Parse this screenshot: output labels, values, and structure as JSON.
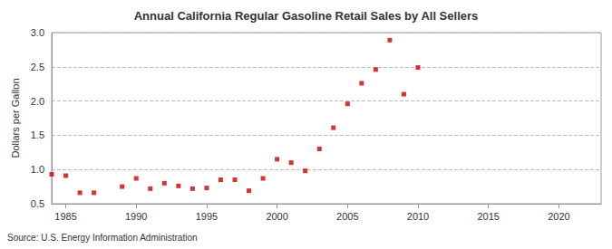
{
  "chart_data": {
    "type": "scatter",
    "title": "Annual California Regular Gasoline Retail Sales by All Sellers",
    "y_label": "Dollars per Gallon",
    "source": "Source: U.S. Energy Information Administration",
    "x": [
      1984,
      1985,
      1986,
      1987,
      1989,
      1990,
      1991,
      1992,
      1993,
      1994,
      1995,
      1996,
      1997,
      1998,
      1999,
      2000,
      2001,
      2002,
      2003,
      2004,
      2005,
      2006,
      2007,
      2008,
      2009,
      2010
    ],
    "values": [
      0.93,
      0.91,
      0.66,
      0.66,
      0.75,
      0.87,
      0.72,
      0.8,
      0.76,
      0.72,
      0.73,
      0.85,
      0.85,
      0.69,
      0.87,
      1.15,
      1.1,
      0.98,
      1.3,
      1.61,
      1.96,
      2.26,
      2.46,
      2.89,
      2.1,
      2.49
    ],
    "color": "#cc0000",
    "marker": "square",
    "xlim": [
      1984,
      2023
    ],
    "xticks": [
      1985,
      1990,
      1995,
      2000,
      2005,
      2010,
      2015,
      2020
    ],
    "ylim": [
      0.5,
      3
    ],
    "yticks": [
      {
        "value": 0.5,
        "label": "0.5"
      },
      {
        "value": 1,
        "label": "1.0"
      },
      {
        "value": 1.5,
        "label": "1.5"
      },
      {
        "value": 2,
        "label": "2.0"
      },
      {
        "value": 2.5,
        "label": "2.5"
      },
      {
        "value": 3,
        "label": "3.0"
      }
    ],
    "grid": true
  }
}
